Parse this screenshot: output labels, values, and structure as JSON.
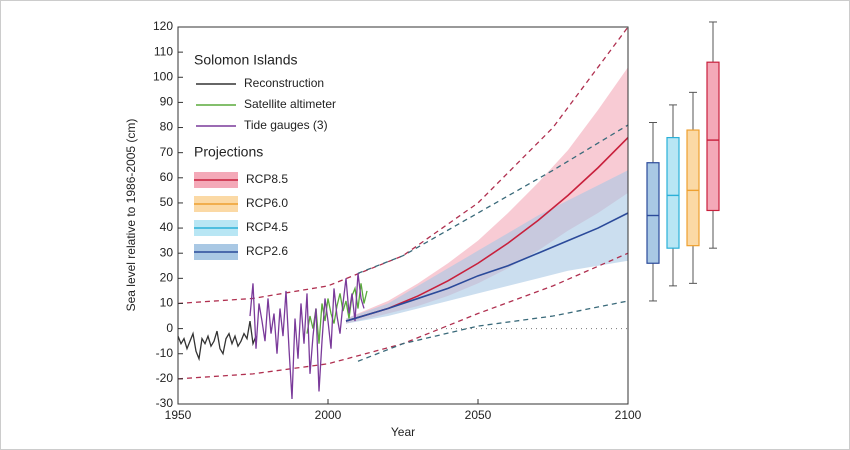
{
  "chart_data": {
    "type": "line",
    "x_label": "Year",
    "y_label": "Sea level relative to 1986-2005 (cm)",
    "xlim": [
      1950,
      2100
    ],
    "xticks": [
      1950,
      2000,
      2050,
      2100
    ],
    "ylim": [
      -30,
      120
    ],
    "yticks": [
      -30,
      -20,
      -10,
      0,
      10,
      20,
      30,
      40,
      50,
      60,
      70,
      80,
      90,
      100,
      110,
      120
    ],
    "legend_title": "Solomon Islands",
    "projections_title": "Projections",
    "series": [
      {
        "name": "Reconstruction",
        "color": "#333333",
        "x": [
          1950,
          1951,
          1952,
          1953,
          1954,
          1955,
          1956,
          1957,
          1958,
          1959,
          1960,
          1961,
          1962,
          1963,
          1964,
          1965,
          1966,
          1967,
          1968,
          1969,
          1970,
          1971,
          1972,
          1973,
          1974,
          1975,
          1976
        ],
        "values": [
          -3,
          -6,
          -4,
          -8,
          -5,
          -2,
          -9,
          -12,
          -4,
          -6,
          -3,
          -7,
          -5,
          -1,
          -8,
          -10,
          -4,
          -2,
          -6,
          -3,
          -7,
          -5,
          -2,
          -4,
          3,
          -6,
          -3
        ]
      },
      {
        "name": "Satellite altimeter",
        "color": "#5aaa3c",
        "x": [
          1993,
          1994,
          1995,
          1996,
          1997,
          1998,
          1999,
          2000,
          2001,
          2002,
          2003,
          2004,
          2005,
          2006,
          2007,
          2008,
          2009,
          2010,
          2011,
          2012,
          2013
        ],
        "values": [
          -2,
          5,
          0,
          8,
          -6,
          10,
          3,
          12,
          6,
          2,
          9,
          14,
          7,
          11,
          4,
          13,
          16,
          8,
          18,
          10,
          15
        ]
      },
      {
        "name": "Tide gauges (3)",
        "color": "#7a3a9a",
        "x": [
          1974,
          1975,
          1976,
          1977,
          1978,
          1979,
          1980,
          1981,
          1982,
          1983,
          1984,
          1985,
          1986,
          1987,
          1988,
          1989,
          1990,
          1991,
          1992,
          1993,
          1994,
          1995,
          1996,
          1997,
          1998,
          1999,
          2000,
          2001,
          2002,
          2003,
          2004,
          2005,
          2006,
          2007,
          2008,
          2009,
          2010,
          2011,
          2012
        ],
        "values": [
          5,
          18,
          -8,
          10,
          3,
          -5,
          12,
          -2,
          6,
          -10,
          8,
          -3,
          15,
          -8,
          -28,
          4,
          -12,
          10,
          -6,
          14,
          -18,
          -3,
          8,
          -25,
          -5,
          12,
          3,
          -8,
          16,
          5,
          -2,
          10,
          20,
          6,
          14,
          3,
          22,
          12,
          8
        ]
      }
    ],
    "projections": [
      {
        "name": "RCP8.5",
        "color": "#c8203c",
        "band_color": "#f4a9b8",
        "x": [
          2006,
          2020,
          2030,
          2040,
          2050,
          2060,
          2070,
          2080,
          2090,
          2100
        ],
        "values": [
          3,
          8,
          13,
          19,
          26,
          34,
          43,
          53,
          64,
          76
        ],
        "upper": [
          4,
          11,
          18,
          26,
          35,
          46,
          58,
          71,
          87,
          104
        ],
        "lower": [
          2,
          6,
          9,
          13,
          18,
          24,
          31,
          39,
          46,
          54
        ],
        "box": {
          "min": 32,
          "q1": 47,
          "median": 75,
          "q3": 106,
          "max": 122
        }
      },
      {
        "name": "RCP6.0",
        "color": "#eea030",
        "band_color": "#fbd9a5",
        "box": {
          "min": 18,
          "q1": 33,
          "median": 55,
          "q3": 79,
          "max": 94
        }
      },
      {
        "name": "RCP4.5",
        "color": "#2ab0d8",
        "band_color": "#b8e6f4",
        "box": {
          "min": 17,
          "q1": 32,
          "median": 53,
          "q3": 76,
          "max": 89
        }
      },
      {
        "name": "RCP2.6",
        "color": "#2b4a9a",
        "band_color": "#a9c8e4",
        "x": [
          2006,
          2020,
          2030,
          2040,
          2050,
          2060,
          2070,
          2080,
          2090,
          2100
        ],
        "values": [
          3,
          8,
          12,
          16,
          21,
          25,
          30,
          35,
          40,
          46
        ],
        "upper": [
          4,
          10,
          17,
          24,
          31,
          38,
          45,
          51,
          57,
          63
        ],
        "lower": [
          2,
          5,
          8,
          11,
          14,
          17,
          20,
          23,
          25,
          27
        ],
        "box": {
          "min": 11,
          "q1": 26,
          "median": 45,
          "q3": 66,
          "max": 82
        }
      }
    ],
    "envelopes": [
      {
        "color": "#b03050",
        "x": [
          1950,
          1975,
          2000,
          2025,
          2050,
          2075,
          2100
        ],
        "values": [
          10,
          12,
          17,
          29,
          50,
          80,
          120
        ]
      },
      {
        "color": "#b03050",
        "x": [
          1950,
          1975,
          2000,
          2025,
          2050,
          2075,
          2100
        ],
        "values": [
          -20,
          -18,
          -14,
          -6,
          6,
          17,
          30
        ]
      },
      {
        "color": "#3a6a7a",
        "x": [
          2010,
          2025,
          2050,
          2075,
          2100
        ],
        "values": [
          22,
          29,
          46,
          63,
          81
        ]
      },
      {
        "color": "#3a6a7a",
        "x": [
          2010,
          2025,
          2050,
          2075,
          2100
        ],
        "values": [
          -13,
          -6,
          1,
          5,
          11
        ]
      }
    ]
  }
}
